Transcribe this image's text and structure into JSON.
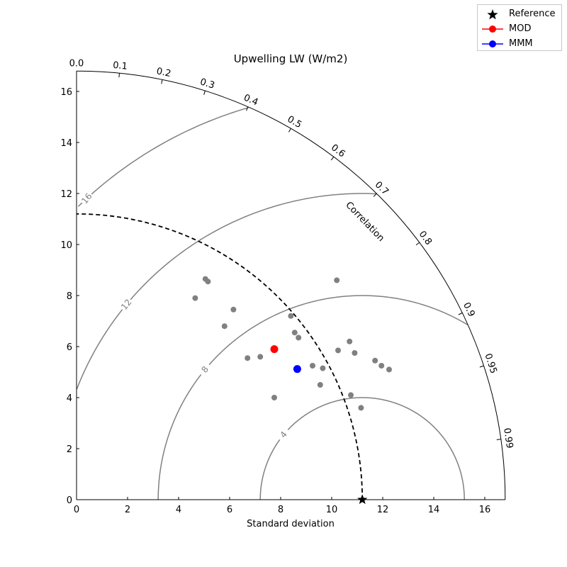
{
  "chart_data": {
    "type": "taylor-diagram",
    "title": "Upwelling LW (W/m2)",
    "xlabel": "Standard deviation",
    "ylabel": "",
    "std_range": [
      0,
      16.8
    ],
    "std_ticks": [
      0,
      2,
      4,
      6,
      8,
      10,
      12,
      14,
      16
    ],
    "correlation_label": "Correlation",
    "correlation_ticks": [
      {
        "value": 0.0,
        "label": "0.0"
      },
      {
        "value": 0.1,
        "label": "0.1"
      },
      {
        "value": 0.2,
        "label": "0.2"
      },
      {
        "value": 0.3,
        "label": "0.3"
      },
      {
        "value": 0.4,
        "label": "0.4"
      },
      {
        "value": 0.5,
        "label": "0.5"
      },
      {
        "value": 0.6,
        "label": "0.6"
      },
      {
        "value": 0.7,
        "label": "0.7"
      },
      {
        "value": 0.8,
        "label": "0.8"
      },
      {
        "value": 0.9,
        "label": "0.9"
      },
      {
        "value": 0.95,
        "label": "0.95"
      },
      {
        "value": 0.99,
        "label": "0.99"
      }
    ],
    "rms_contours": [
      {
        "value": 4,
        "label": "4"
      },
      {
        "value": 8,
        "label": "8"
      },
      {
        "value": 12,
        "label": "12"
      },
      {
        "value": 16,
        "label": "16"
      }
    ],
    "reference": {
      "name": "Reference",
      "std": 11.2
    },
    "other_models": [
      {
        "x": 4.65,
        "y": 7.9
      },
      {
        "x": 5.05,
        "y": 8.65
      },
      {
        "x": 5.15,
        "y": 8.55
      },
      {
        "x": 5.8,
        "y": 6.8
      },
      {
        "x": 6.15,
        "y": 7.45
      },
      {
        "x": 6.7,
        "y": 5.55
      },
      {
        "x": 7.2,
        "y": 5.6
      },
      {
        "x": 7.75,
        "y": 4.0
      },
      {
        "x": 8.4,
        "y": 7.2
      },
      {
        "x": 8.55,
        "y": 6.55
      },
      {
        "x": 8.7,
        "y": 6.35
      },
      {
        "x": 9.25,
        "y": 5.25
      },
      {
        "x": 9.55,
        "y": 4.5
      },
      {
        "x": 9.65,
        "y": 5.15
      },
      {
        "x": 10.2,
        "y": 8.6
      },
      {
        "x": 10.25,
        "y": 5.85
      },
      {
        "x": 10.7,
        "y": 6.2
      },
      {
        "x": 10.75,
        "y": 4.1
      },
      {
        "x": 10.9,
        "y": 5.75
      },
      {
        "x": 11.15,
        "y": 3.6
      },
      {
        "x": 11.7,
        "y": 5.45
      },
      {
        "x": 11.95,
        "y": 5.25
      },
      {
        "x": 12.25,
        "y": 5.1
      }
    ],
    "highlighted": [
      {
        "name": "MOD",
        "color": "#ff0000",
        "x": 7.75,
        "y": 5.9
      },
      {
        "name": "MMM",
        "color": "#0000ff",
        "x": 8.65,
        "y": 5.12
      }
    ],
    "legend": {
      "placement": "top-right",
      "entries": [
        {
          "name": "Reference",
          "marker": "star",
          "color": "#000000"
        },
        {
          "name": "MOD",
          "marker": "circle-line",
          "color": "#ff0000"
        },
        {
          "name": "MMM",
          "marker": "circle-line",
          "color": "#0000ff"
        }
      ]
    },
    "colors": {
      "contour": "#808080",
      "other_points": "#808080",
      "axes": "#000000"
    }
  }
}
